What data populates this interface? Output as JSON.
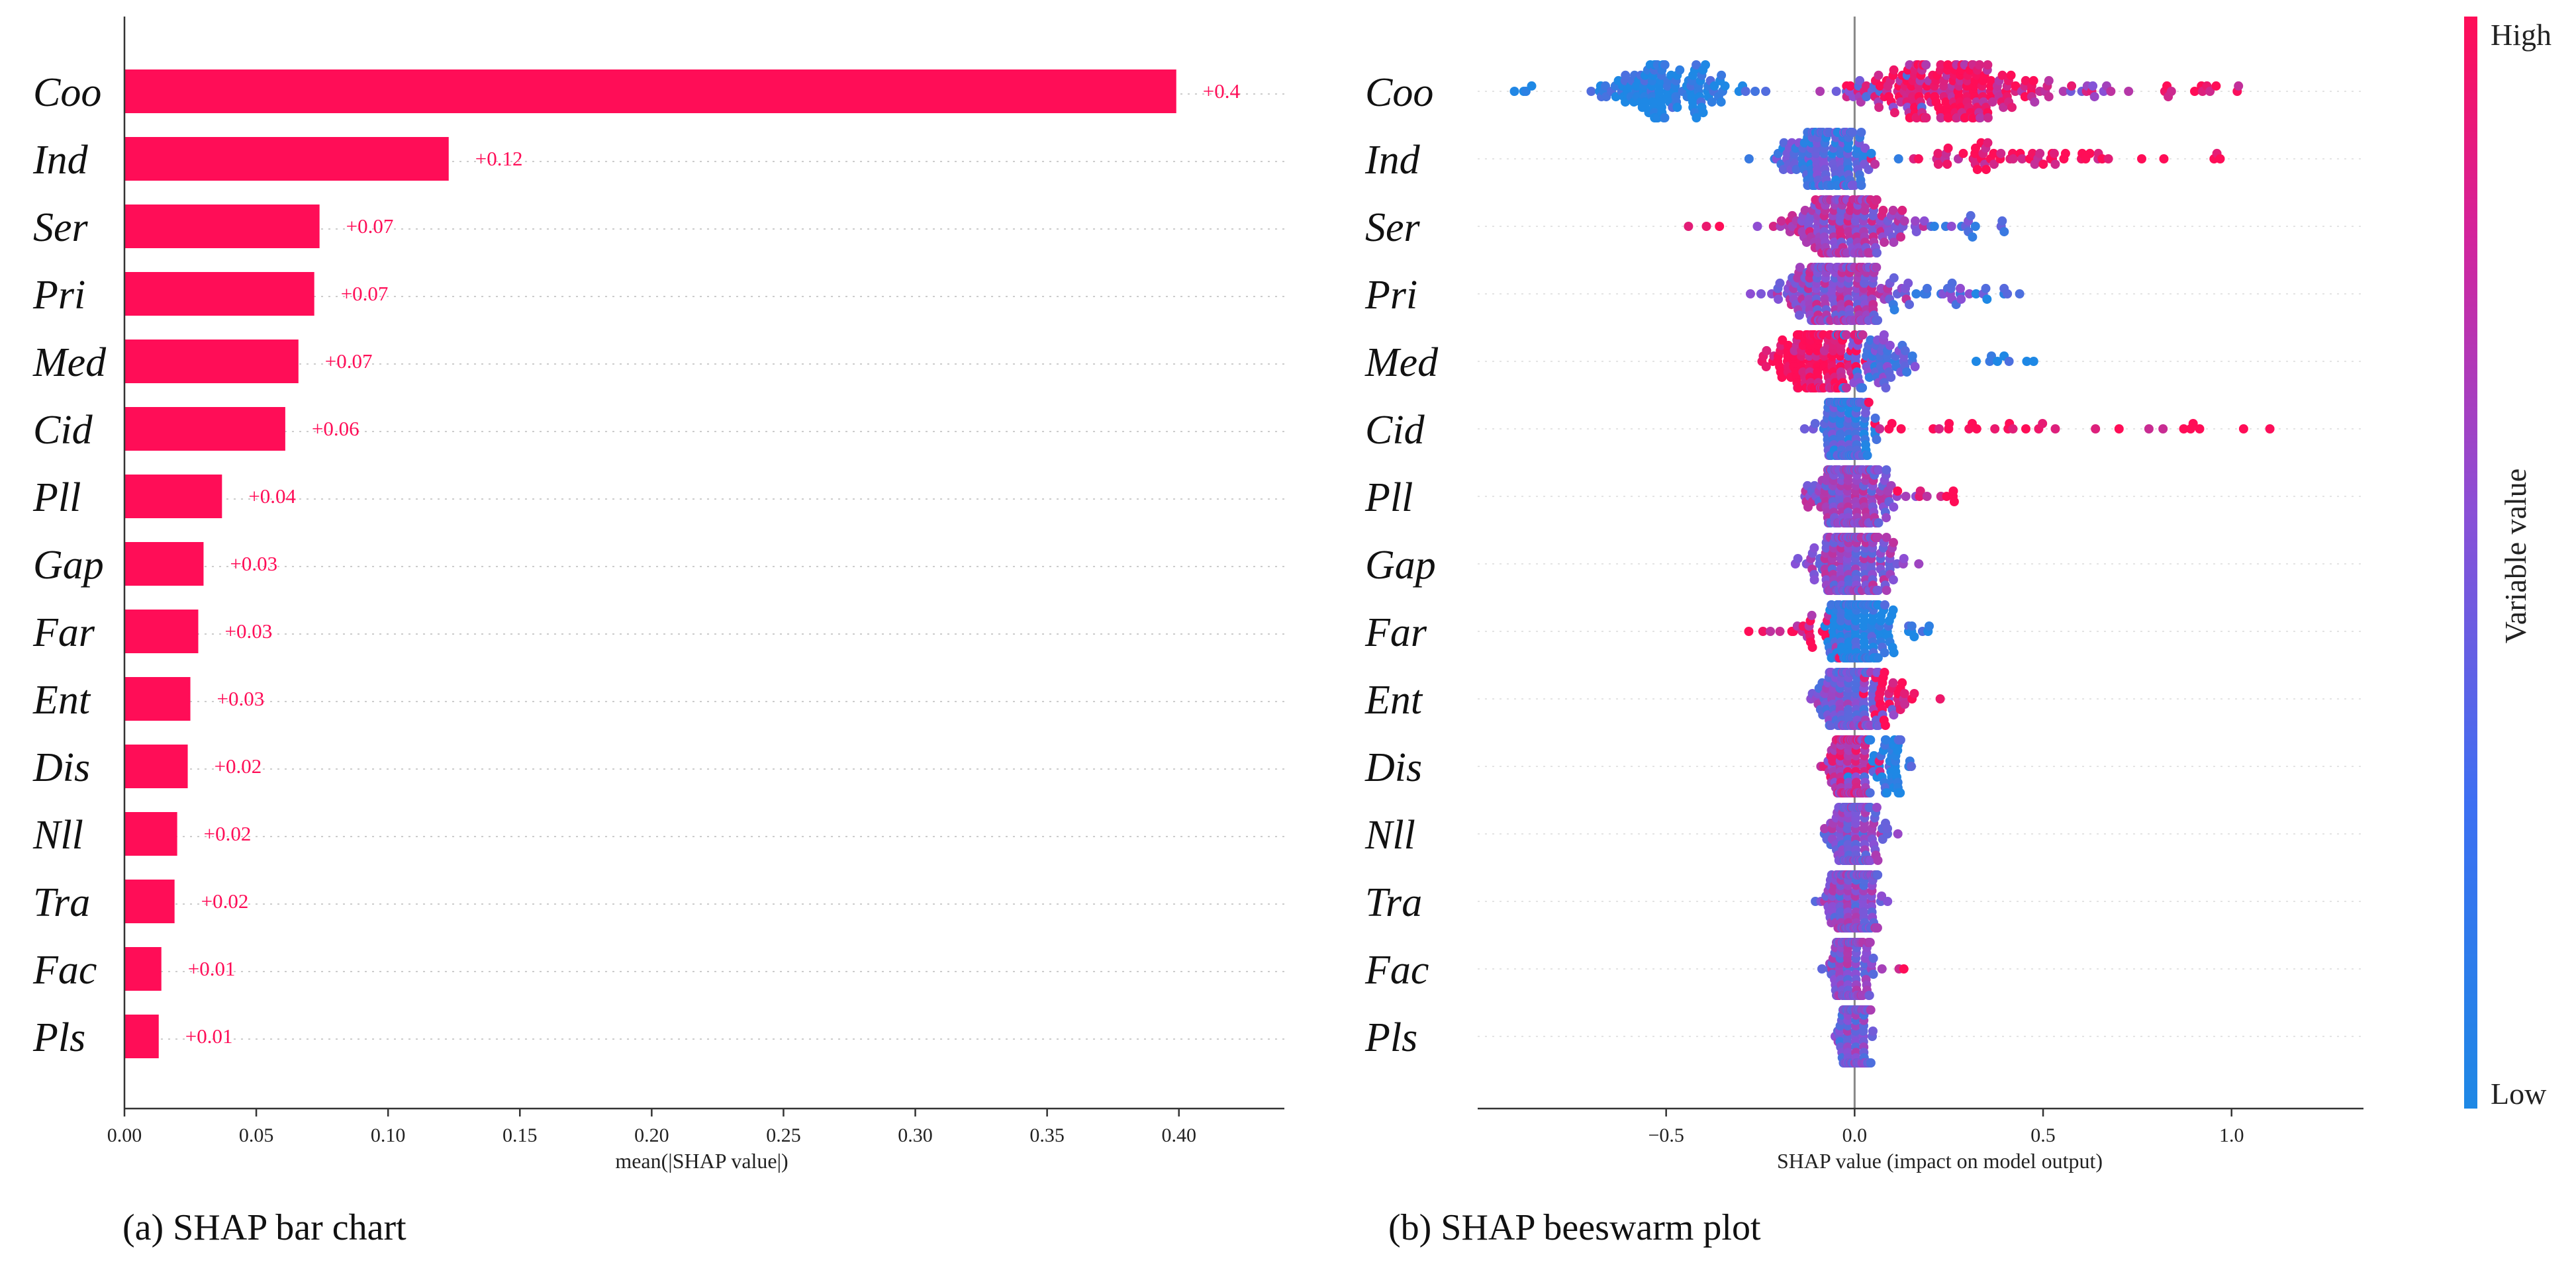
{
  "colors": {
    "high": "#ff0d57",
    "mid": "#8b4fd6",
    "low": "#1e88e5",
    "bar": "#ff0d57"
  },
  "chart_data": [
    {
      "type": "bar",
      "orientation": "horizontal",
      "caption": "(a)  SHAP bar chart",
      "xlabel": "mean(|SHAP value|)",
      "ylabel": "",
      "xlim": [
        0,
        0.44
      ],
      "x_ticks": [
        "0.00",
        "0.05",
        "0.10",
        "0.15",
        "0.20",
        "0.25",
        "0.30",
        "0.35",
        "0.40"
      ],
      "categories": [
        "Coo",
        "Ind",
        "Ser",
        "Pri",
        "Med",
        "Cid",
        "Pll",
        "Gap",
        "Far",
        "Ent",
        "Dis",
        "Nll",
        "Tra",
        "Fac",
        "Pls"
      ],
      "values": [
        0.399,
        0.123,
        0.074,
        0.072,
        0.066,
        0.061,
        0.037,
        0.03,
        0.028,
        0.025,
        0.024,
        0.02,
        0.019,
        0.014,
        0.013
      ],
      "value_labels": [
        "+0.4",
        "+0.12",
        "+0.07",
        "+0.07",
        "+0.07",
        "+0.06",
        "+0.04",
        "+0.03",
        "+0.03",
        "+0.03",
        "+0.02",
        "+0.02",
        "+0.02",
        "+0.01",
        "+0.01"
      ],
      "grid": "dotted horizontal guides"
    },
    {
      "type": "scatter",
      "subtype": "beeswarm",
      "caption": "(b)  SHAP beeswarm plot",
      "xlabel": "SHAP value (impact on model output)",
      "ylabel": "",
      "xlim": [
        -1.0,
        1.35
      ],
      "x_ticks": [
        "−0.5",
        "0.0",
        "0.5",
        "1.0"
      ],
      "colorbar": {
        "title": "Variable value",
        "high_label": "High",
        "low_label": "Low"
      },
      "categories": [
        "Coo",
        "Ind",
        "Ser",
        "Pri",
        "Med",
        "Cid",
        "Pll",
        "Gap",
        "Far",
        "Ent",
        "Dis",
        "Nll",
        "Tra",
        "Fac",
        "Pls"
      ],
      "series": [
        {
          "name": "Coo",
          "clusters": [
            {
              "x": -0.5,
              "sd": 0.1,
              "n": 130,
              "c": 0.0
            },
            {
              "x": -0.88,
              "sd": 0.02,
              "n": 4,
              "c": 0.05
            },
            {
              "x": 0.27,
              "sd": 0.12,
              "n": 200,
              "c": 0.9
            },
            {
              "x": 0.05,
              "sd": 0.1,
              "n": 18,
              "c": 0.45
            },
            {
              "x": 0.62,
              "sd": 0.06,
              "n": 10,
              "c": 0.6
            },
            {
              "x": 0.98,
              "sd": 0.08,
              "n": 12,
              "c": 0.95
            }
          ]
        },
        {
          "name": "Ind",
          "clusters": [
            {
              "x": -0.08,
              "sd": 0.06,
              "n": 170,
              "c": 0.25
            },
            {
              "x": 0.38,
              "sd": 0.18,
              "n": 60,
              "c": 0.95
            },
            {
              "x": 0.95,
              "sd": 0.02,
              "n": 3,
              "c": 1.0
            }
          ]
        },
        {
          "name": "Ser",
          "clusters": [
            {
              "x": -0.03,
              "sd": 0.08,
              "n": 210,
              "c": 0.6
            },
            {
              "x": 0.28,
              "sd": 0.07,
              "n": 14,
              "c": 0.3
            },
            {
              "x": -0.4,
              "sd": 0.03,
              "n": 3,
              "c": 1.0
            }
          ]
        },
        {
          "name": "Pri",
          "clusters": [
            {
              "x": -0.05,
              "sd": 0.08,
              "n": 210,
              "c": 0.55
            },
            {
              "x": 0.2,
              "sd": 0.08,
              "n": 28,
              "c": 0.3
            },
            {
              "x": 0.4,
              "sd": 0.04,
              "n": 6,
              "c": 0.1
            }
          ]
        },
        {
          "name": "Med",
          "clusters": [
            {
              "x": -0.1,
              "sd": 0.06,
              "n": 150,
              "c": 0.95
            },
            {
              "x": 0.05,
              "sd": 0.05,
              "n": 70,
              "c": 0.3
            },
            {
              "x": 0.37,
              "sd": 0.04,
              "n": 8,
              "c": 0.0
            }
          ]
        },
        {
          "name": "Cid",
          "clusters": [
            {
              "x": -0.02,
              "sd": 0.03,
              "n": 190,
              "c": 0.2
            },
            {
              "x": 0.3,
              "sd": 0.2,
              "n": 22,
              "c": 0.95
            },
            {
              "x": 0.95,
              "sd": 0.25,
              "n": 9,
              "c": 0.98
            }
          ]
        },
        {
          "name": "Pll",
          "clusters": [
            {
              "x": 0.0,
              "sd": 0.05,
              "n": 220,
              "c": 0.5
            },
            {
              "x": 0.22,
              "sd": 0.08,
              "n": 10,
              "c": 0.95
            }
          ]
        },
        {
          "name": "Gap",
          "clusters": [
            {
              "x": 0.0,
              "sd": 0.05,
              "n": 230,
              "c": 0.5
            }
          ]
        },
        {
          "name": "Far",
          "clusters": [
            {
              "x": -0.14,
              "sd": 0.06,
              "n": 28,
              "c": 0.85
            },
            {
              "x": 0.01,
              "sd": 0.04,
              "n": 200,
              "c": 0.05
            },
            {
              "x": 0.14,
              "sd": 0.04,
              "n": 12,
              "c": 0.05
            }
          ]
        },
        {
          "name": "Ent",
          "clusters": [
            {
              "x": -0.01,
              "sd": 0.04,
              "n": 180,
              "c": 0.4
            },
            {
              "x": 0.09,
              "sd": 0.04,
              "n": 30,
              "c": 0.95
            },
            {
              "x": 0.23,
              "sd": 0.01,
              "n": 1,
              "c": 1.0
            }
          ]
        },
        {
          "name": "Dis",
          "clusters": [
            {
              "x": -0.01,
              "sd": 0.03,
              "n": 170,
              "c": 0.7
            },
            {
              "x": 0.08,
              "sd": 0.04,
              "n": 50,
              "c": 0.05
            }
          ]
        },
        {
          "name": "Nll",
          "clusters": [
            {
              "x": 0.0,
              "sd": 0.03,
              "n": 210,
              "c": 0.45
            }
          ]
        },
        {
          "name": "Tra",
          "clusters": [
            {
              "x": 0.0,
              "sd": 0.035,
              "n": 210,
              "c": 0.45
            }
          ]
        },
        {
          "name": "Fac",
          "clusters": [
            {
              "x": -0.01,
              "sd": 0.025,
              "n": 190,
              "c": 0.45
            },
            {
              "x": 0.13,
              "sd": 0.01,
              "n": 2,
              "c": 0.95
            }
          ]
        },
        {
          "name": "Pls",
          "clusters": [
            {
              "x": 0.0,
              "sd": 0.02,
              "n": 200,
              "c": 0.4
            }
          ]
        }
      ]
    }
  ]
}
